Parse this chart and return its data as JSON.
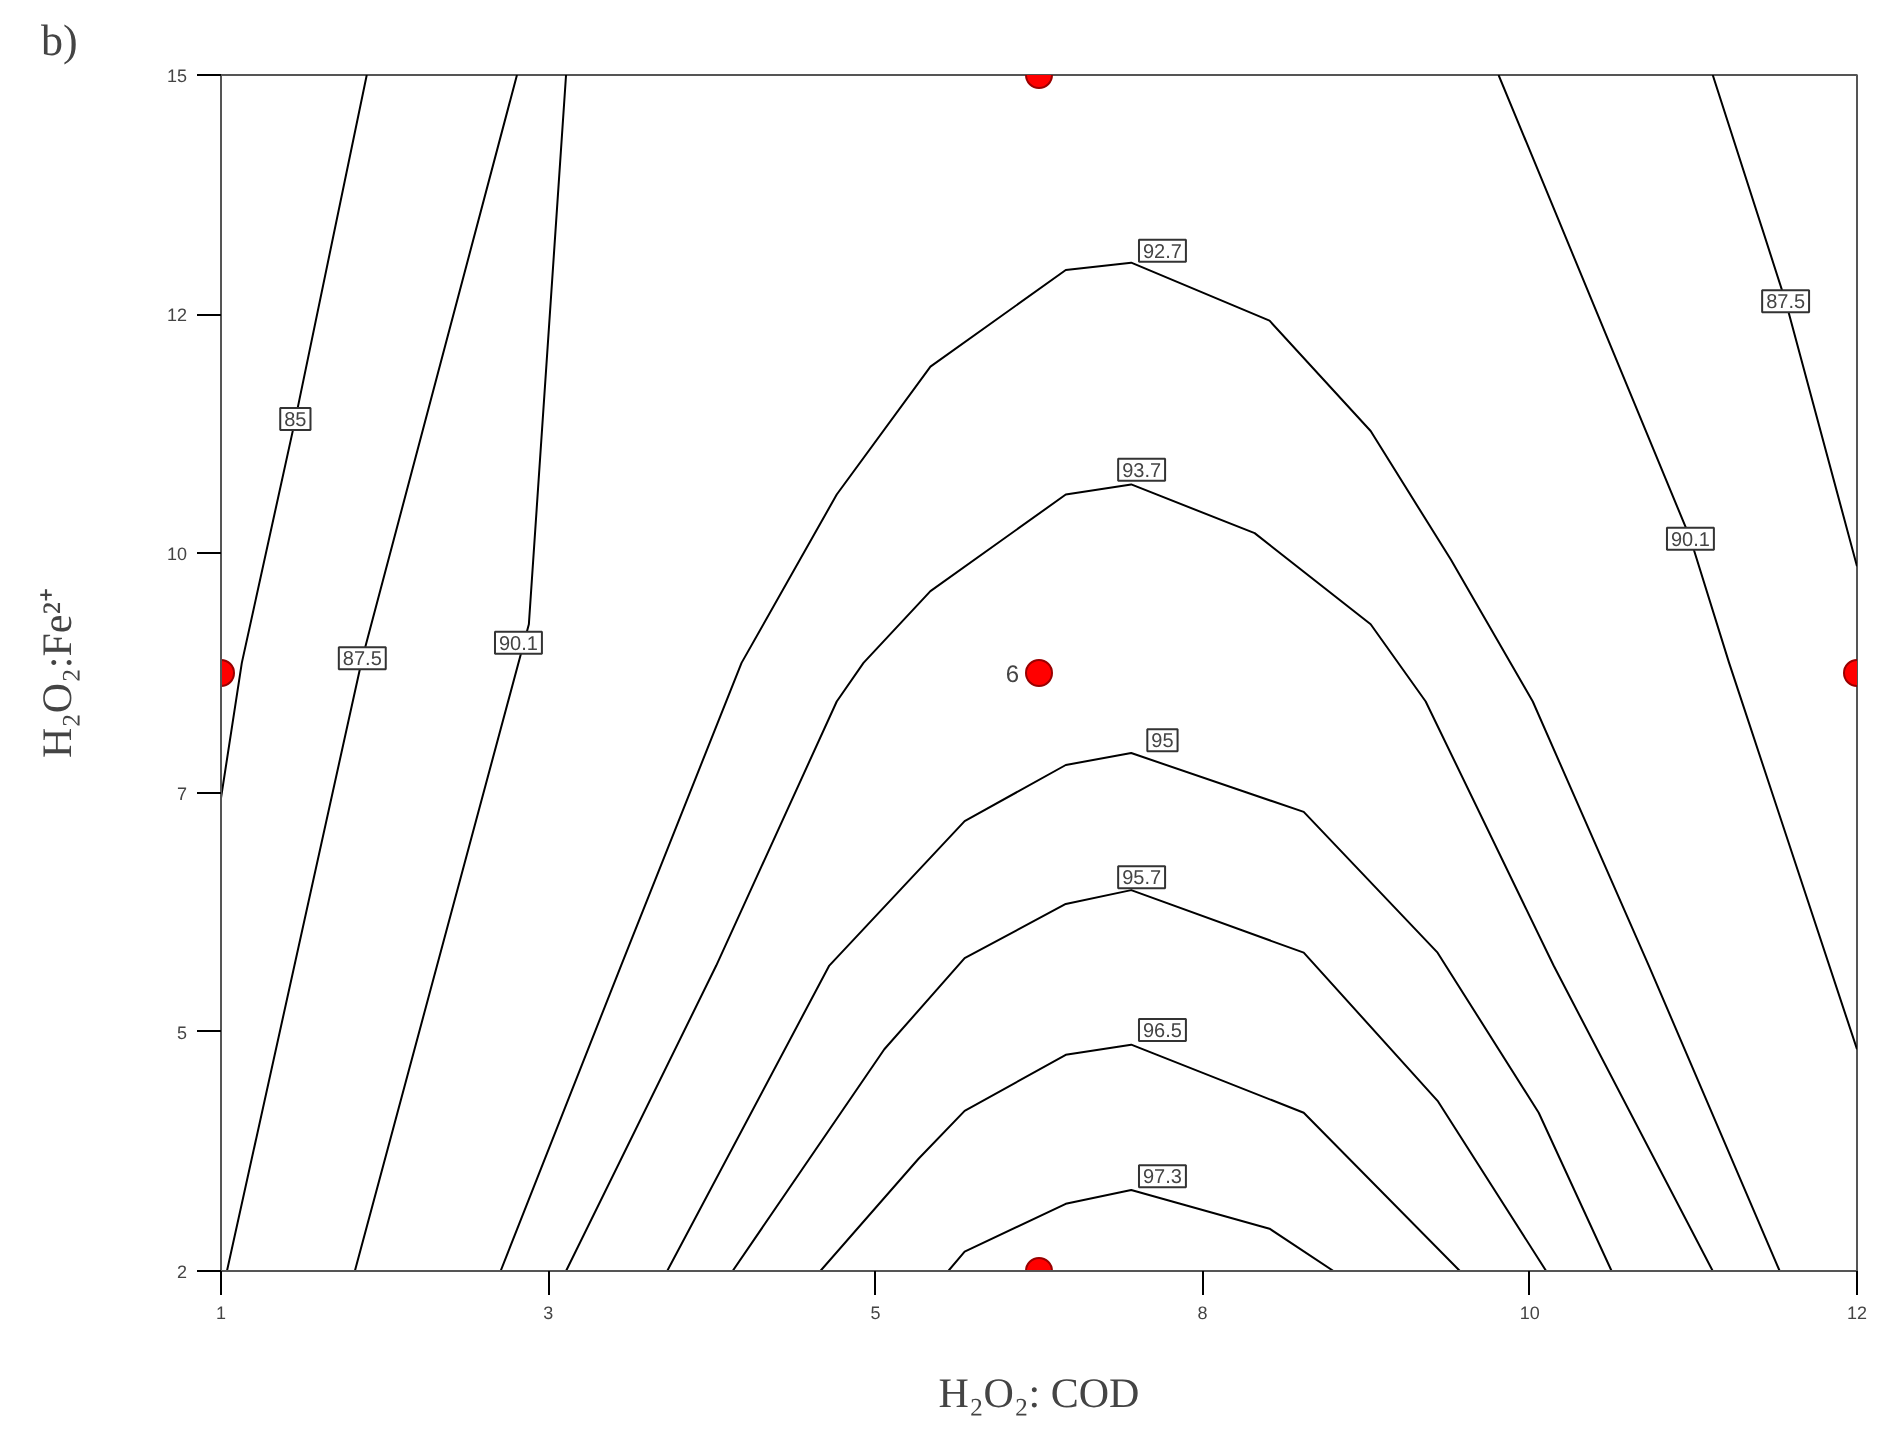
{
  "chart_data": {
    "type": "line",
    "title": "b)",
    "xlabel": "H₂O₂: COD",
    "ylabel": "H₂O₂:Fe²⁺",
    "xlim": [
      1,
      12
    ],
    "ylim": [
      2,
      15
    ],
    "xticks": [
      1,
      {
        "value": 3.2,
        "label": "3"
      },
      {
        "value": 5.4,
        "label": "5"
      },
      {
        "value": 7.6,
        "label": "8"
      },
      {
        "value": 9.8,
        "label": "10"
      },
      12
    ],
    "yticks": [
      2,
      {
        "value": 4.6,
        "label": "5"
      },
      {
        "value": 7.2,
        "label": "7"
      },
      {
        "value": 9.8,
        "label": "10"
      },
      {
        "value": 12.4,
        "label": "12"
      },
      15
    ],
    "grid": false,
    "marker": "none",
    "line_style": "solid",
    "series": [
      {
        "color": "#000000",
        "x": [
          1.98,
          1.5,
          1.14,
          1.0
        ],
        "values": [
          15.0,
          11.26,
          8.61,
          7.14
        ]
      },
      {
        "color": "#000000",
        "x": [
          2.99,
          1.95,
          1.04,
          null,
          11.03,
          11.52,
          12.0
        ],
        "values": [
          15.0,
          8.66,
          2.0,
          null,
          15.0,
          12.54,
          9.66
        ]
      },
      {
        "color": "#000000",
        "x": [
          3.32,
          3.07,
          1.9,
          null,
          9.59,
          10.88,
          11.14,
          12.0
        ],
        "values": [
          15.0,
          9.03,
          2.0,
          null,
          15.0,
          9.96,
          8.61,
          4.41
        ]
      },
      {
        "color": "#000000",
        "x": [
          2.88,
          3.69,
          4.5,
          5.14,
          5.77,
          6.68,
          7.12,
          8.05,
          8.73,
          9.27,
          9.82,
          10.6,
          11.48
        ],
        "values": [
          2.0,
          5.32,
          8.61,
          10.44,
          11.83,
          12.88,
          12.96,
          12.33,
          11.13,
          9.73,
          8.19,
          5.32,
          2.0
        ]
      },
      {
        "color": "#000000",
        "x": [
          3.32,
          4.33,
          5.14,
          5.32,
          5.77,
          6.68,
          7.12,
          7.95,
          8.73,
          9.1,
          9.96,
          11.03
        ],
        "values": [
          2.0,
          5.32,
          8.19,
          8.61,
          9.39,
          10.44,
          10.55,
          10.02,
          9.03,
          8.19,
          5.32,
          2.0
        ]
      },
      {
        "color": "#000000",
        "x": [
          4.0,
          5.09,
          6.0,
          6.68,
          7.12,
          8.28,
          9.18,
          9.86,
          10.35
        ],
        "values": [
          2.0,
          5.32,
          6.89,
          7.5,
          7.63,
          6.99,
          5.46,
          3.72,
          2.0
        ]
      },
      {
        "color": "#000000",
        "x": [
          4.44,
          5.46,
          6.0,
          6.68,
          7.12,
          8.28,
          9.18,
          9.91
        ],
        "values": [
          2.0,
          4.41,
          5.4,
          5.99,
          6.14,
          5.46,
          3.85,
          2.0
        ]
      },
      {
        "color": "#000000",
        "x": [
          5.03,
          5.69,
          6.0,
          6.68,
          7.12,
          8.28,
          9.33
        ],
        "values": [
          2.0,
          3.22,
          3.74,
          4.35,
          4.46,
          3.72,
          2.0
        ]
      },
      {
        "color": "#000000",
        "x": [
          5.89,
          6.0,
          6.68,
          7.12,
          8.05,
          8.48
        ],
        "values": [
          2.0,
          2.21,
          2.73,
          2.88,
          2.46,
          2.0
        ]
      },
      {
        "type": "scatter",
        "marker": "circle",
        "color": "#ff0000",
        "x": [
          1,
          12,
          6.5,
          6.5,
          6.5
        ],
        "values": [
          8.5,
          8.5,
          2,
          15,
          8.5
        ]
      }
    ],
    "annotations": [
      {
        "text": "85",
        "x": 1.5,
        "y": 11.26
      },
      {
        "text": "87.5",
        "x": 1.95,
        "y": 8.66
      },
      {
        "text": "90.1",
        "x": 3.0,
        "y": 8.83
      },
      {
        "text": "92.7",
        "x": 7.33,
        "y": 13.09
      },
      {
        "text": "93.7",
        "x": 7.19,
        "y": 10.71
      },
      {
        "text": "95",
        "x": 7.33,
        "y": 7.77
      },
      {
        "text": "95.7",
        "x": 7.19,
        "y": 6.28
      },
      {
        "text": "96.5",
        "x": 7.33,
        "y": 4.62
      },
      {
        "text": "97.3",
        "x": 7.33,
        "y": 3.03
      },
      {
        "text": "90.1",
        "x": 10.88,
        "y": 9.96
      },
      {
        "text": "87.5",
        "x": 11.52,
        "y": 12.54
      },
      {
        "text": "6",
        "x": 6.5,
        "y": 8.5
      }
    ]
  }
}
